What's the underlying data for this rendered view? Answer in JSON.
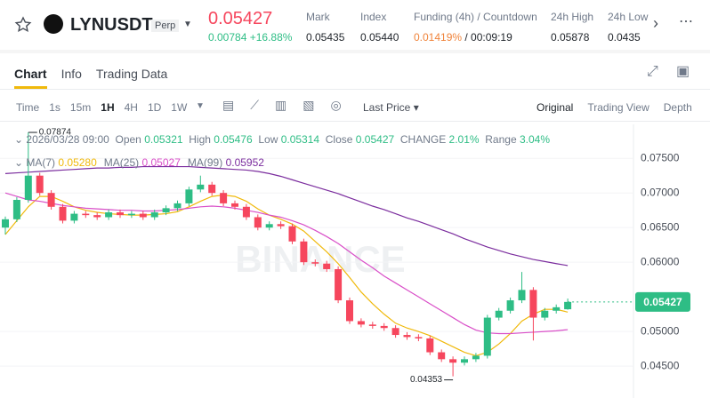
{
  "header": {
    "symbol": "LYNUSDT",
    "tag": "Perp",
    "price": "0.05427",
    "change": "0.00784",
    "change_pct": "+16.88%",
    "stats": [
      {
        "label": "Mark",
        "value": "0.05435"
      },
      {
        "label": "Index",
        "value": "0.05440"
      },
      {
        "label": "Funding (4h) / Countdown",
        "value": "0.01419%",
        "value2": "/ 00:09:19"
      },
      {
        "label": "24h High",
        "value": "0.05878"
      },
      {
        "label": "24h Low",
        "value": "0.0435"
      }
    ]
  },
  "tabs": [
    "Chart",
    "Info",
    "Trading Data"
  ],
  "toolbar": {
    "intervals": [
      "Time",
      "1s",
      "15m",
      "1H",
      "4H",
      "1D",
      "1W"
    ],
    "price_type": "Last Price",
    "views": [
      "Original",
      "Trading View",
      "Depth"
    ]
  },
  "legend": {
    "date": "2026/03/28 09:00",
    "open": "Open",
    "high": "High",
    "low": "Low",
    "close": "Close",
    "change": "CHANGE",
    "change_value": "2.01%",
    "range": "Range",
    "range_value": "3.04%"
  },
  "watermark": "BINANCE",
  "chart_data": {
    "type": "candlestick",
    "up_color": "#2ebd85",
    "down_color": "#f6465d",
    "open": [
      0.065,
      0.0662,
      0.069,
      0.0725,
      0.07,
      0.068,
      0.066,
      0.067,
      0.0668,
      0.0665,
      0.0672,
      0.0668,
      0.067,
      0.0665,
      0.0672,
      0.0678,
      0.0685,
      0.0705,
      0.0712,
      0.07,
      0.0685,
      0.068,
      0.0665,
      0.065,
      0.0655,
      0.0652,
      0.063,
      0.06,
      0.0598,
      0.059,
      0.0545,
      0.0515,
      0.051,
      0.0508,
      0.0505,
      0.0495,
      0.0492,
      0.049,
      0.047,
      0.046,
      0.0455,
      0.046,
      0.0465,
      0.052,
      0.053,
      0.0545,
      0.056,
      0.052,
      0.053,
      0.05321
    ],
    "high": [
      0.0666,
      0.0694,
      0.07874,
      0.0729,
      0.0704,
      0.0684,
      0.0674,
      0.0674,
      0.0672,
      0.0676,
      0.0676,
      0.0674,
      0.0674,
      0.0676,
      0.0682,
      0.0689,
      0.0709,
      0.0725,
      0.0716,
      0.0704,
      0.0689,
      0.0684,
      0.0669,
      0.0659,
      0.0659,
      0.0656,
      0.0634,
      0.0604,
      0.0602,
      0.0594,
      0.0549,
      0.0519,
      0.0514,
      0.0512,
      0.0509,
      0.0499,
      0.0496,
      0.0494,
      0.0474,
      0.0464,
      0.0464,
      0.0469,
      0.0524,
      0.0534,
      0.0549,
      0.0586,
      0.0564,
      0.0534,
      0.0539,
      0.05476
    ],
    "low": [
      0.064,
      0.0658,
      0.0686,
      0.0696,
      0.0676,
      0.0656,
      0.0656,
      0.0664,
      0.0661,
      0.0661,
      0.0664,
      0.0664,
      0.0661,
      0.0661,
      0.0668,
      0.0674,
      0.0681,
      0.0701,
      0.0696,
      0.0681,
      0.0676,
      0.0661,
      0.0646,
      0.0646,
      0.0648,
      0.0626,
      0.0596,
      0.0594,
      0.0586,
      0.0541,
      0.0511,
      0.0506,
      0.0504,
      0.0501,
      0.0491,
      0.0488,
      0.0486,
      0.0466,
      0.0456,
      0.04353,
      0.0451,
      0.0456,
      0.0461,
      0.0516,
      0.0526,
      0.0541,
      0.0487,
      0.0516,
      0.0526,
      0.05314
    ],
    "close": [
      0.0662,
      0.069,
      0.0725,
      0.07,
      0.068,
      0.066,
      0.067,
      0.0668,
      0.0665,
      0.0672,
      0.0668,
      0.067,
      0.0665,
      0.0672,
      0.0678,
      0.0685,
      0.0705,
      0.0712,
      0.07,
      0.0685,
      0.068,
      0.0665,
      0.065,
      0.0655,
      0.0652,
      0.063,
      0.06,
      0.0598,
      0.059,
      0.0545,
      0.0515,
      0.051,
      0.0508,
      0.0505,
      0.0495,
      0.0492,
      0.049,
      0.047,
      0.046,
      0.0455,
      0.046,
      0.0465,
      0.052,
      0.053,
      0.0545,
      0.056,
      0.052,
      0.053,
      0.0535,
      0.05427
    ],
    "ma": [
      {
        "name": "MA(7)",
        "color": "#f0b90b",
        "value_label": "0.05280",
        "values": [
          0.064,
          0.066,
          0.068,
          0.0695,
          0.0695,
          0.0688,
          0.068,
          0.0675,
          0.0672,
          0.067,
          0.0669,
          0.0668,
          0.0668,
          0.0669,
          0.067,
          0.0673,
          0.068,
          0.0688,
          0.0695,
          0.0697,
          0.0695,
          0.0688,
          0.0677,
          0.0668,
          0.0662,
          0.0655,
          0.0645,
          0.063,
          0.0615,
          0.0598,
          0.0578,
          0.0557,
          0.054,
          0.0525,
          0.0512,
          0.0505,
          0.05,
          0.0494,
          0.0486,
          0.0478,
          0.047,
          0.0465,
          0.047,
          0.0482,
          0.0497,
          0.0515,
          0.0525,
          0.0532,
          0.0532,
          0.0528
        ]
      },
      {
        "name": "MA(25)",
        "color": "#d94fc8",
        "value_label": "0.05027",
        "values": [
          0.07,
          0.0695,
          0.069,
          0.0688,
          0.0685,
          0.0682,
          0.068,
          0.0678,
          0.0677,
          0.0676,
          0.0675,
          0.0675,
          0.0674,
          0.0674,
          0.0675,
          0.0676,
          0.0678,
          0.068,
          0.0681,
          0.068,
          0.0678,
          0.0675,
          0.0672,
          0.0668,
          0.0665,
          0.066,
          0.0654,
          0.0646,
          0.0637,
          0.0627,
          0.0615,
          0.0603,
          0.0592,
          0.058,
          0.057,
          0.056,
          0.055,
          0.054,
          0.053,
          0.052,
          0.051,
          0.0502,
          0.0498,
          0.0497,
          0.0497,
          0.0498,
          0.0499,
          0.05,
          0.0501,
          0.05027
        ]
      },
      {
        "name": "MA(99)",
        "color": "#7b2d9e",
        "value_label": "0.05952",
        "values": [
          0.0728,
          0.0729,
          0.073,
          0.0731,
          0.0732,
          0.0733,
          0.0734,
          0.0735,
          0.0736,
          0.0736,
          0.0737,
          0.0737,
          0.0738,
          0.0738,
          0.0738,
          0.0738,
          0.0738,
          0.0737,
          0.0736,
          0.0735,
          0.0734,
          0.0733,
          0.0731,
          0.0728,
          0.0724,
          0.0719,
          0.0714,
          0.0709,
          0.0704,
          0.0699,
          0.0693,
          0.0687,
          0.0681,
          0.0676,
          0.067,
          0.0664,
          0.0659,
          0.0653,
          0.0647,
          0.0641,
          0.0634,
          0.0628,
          0.0622,
          0.0617,
          0.0612,
          0.0608,
          0.0604,
          0.0601,
          0.0598,
          0.05952
        ]
      }
    ],
    "ylim": [
      0.0404,
      0.0799
    ],
    "yticks": [
      {
        "value": 0.075,
        "label": "0.07500"
      },
      {
        "value": 0.07,
        "label": "0.07000"
      },
      {
        "value": 0.065,
        "label": "0.06500"
      },
      {
        "value": 0.06,
        "label": "0.06000"
      },
      {
        "value": 0.05,
        "label": "0.05000"
      },
      {
        "value": 0.045,
        "label": "0.04500"
      }
    ]
  }
}
